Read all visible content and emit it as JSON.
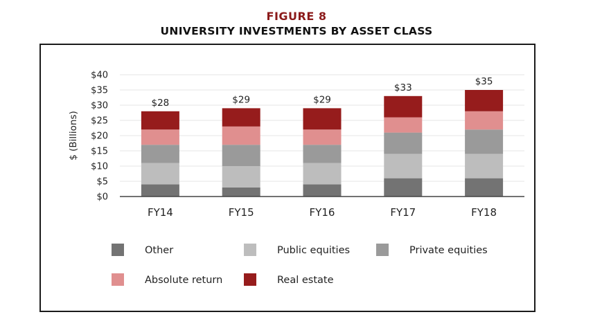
{
  "figure": {
    "label": "FIGURE 8",
    "label_color": "#8b1a1a",
    "title": "UNIVERSITY INVESTMENTS BY ASSET CLASS"
  },
  "chart_data": {
    "type": "bar",
    "stacked": true,
    "title": "UNIVERSITY INVESTMENTS BY ASSET CLASS",
    "xlabel": "",
    "ylabel": "$ (Billions)",
    "ylim": [
      0,
      40
    ],
    "yticks": [
      0,
      5,
      10,
      15,
      20,
      25,
      30,
      35,
      40
    ],
    "ytick_labels": [
      "$0",
      "$5",
      "$10",
      "$15",
      "$20",
      "$25",
      "$30",
      "$35",
      "$40"
    ],
    "grid": true,
    "legend_position": "bottom",
    "categories": [
      "FY14",
      "FY15",
      "FY16",
      "FY17",
      "FY18"
    ],
    "series": [
      {
        "name": "Other",
        "color": "#737373",
        "values": [
          4,
          3,
          4,
          6,
          6
        ]
      },
      {
        "name": "Public equities",
        "color": "#bdbdbd",
        "values": [
          7,
          7,
          7,
          8,
          8
        ]
      },
      {
        "name": "Private equities",
        "color": "#9a9a9a",
        "values": [
          6,
          7,
          6,
          7,
          8
        ]
      },
      {
        "name": "Absolute return",
        "color": "#e08f8f",
        "values": [
          5,
          6,
          5,
          5,
          6
        ]
      },
      {
        "name": "Real estate",
        "color": "#961c1c",
        "values": [
          6,
          6,
          7,
          7,
          7
        ]
      }
    ],
    "totals": [
      28,
      29,
      29,
      33,
      35
    ],
    "total_labels": [
      "$28",
      "$29",
      "$29",
      "$33",
      "$35"
    ]
  }
}
